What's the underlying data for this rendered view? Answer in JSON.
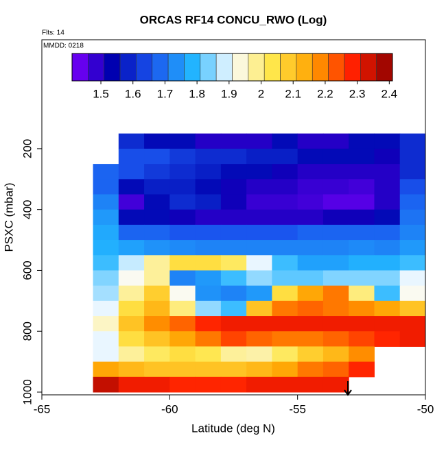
{
  "chart_data": {
    "type": "heatmap",
    "title": "ORCAS RF14 CONCU_RWO (Log)",
    "subtitle": "Flts: 14",
    "annotation": "MMDD: 0218",
    "x_label": "Latitude (deg N)",
    "y_label": "PSXC (mbar)",
    "x": [
      -62.5,
      -61.5,
      -60.5,
      -59.5,
      -58.5,
      -57.5,
      -56.5,
      -55.5,
      -54.5,
      -53.5,
      -52.5,
      -51.5,
      -50.5
    ],
    "y": [
      175,
      225,
      275,
      325,
      375,
      425,
      475,
      525,
      575,
      625,
      675,
      725,
      775,
      825,
      875,
      925,
      975
    ],
    "z": [
      [
        null,
        1.6,
        1.55,
        1.55,
        1.5,
        1.5,
        1.5,
        1.55,
        1.5,
        1.5,
        1.55,
        1.55,
        1.6
      ],
      [
        null,
        1.65,
        1.65,
        1.62,
        1.6,
        1.6,
        1.58,
        1.58,
        1.55,
        1.55,
        1.55,
        1.52,
        1.6
      ],
      [
        1.68,
        1.65,
        1.62,
        1.6,
        1.58,
        1.55,
        1.55,
        1.52,
        1.5,
        1.5,
        1.5,
        1.5,
        1.6
      ],
      [
        1.68,
        1.55,
        1.58,
        1.58,
        1.55,
        1.52,
        1.5,
        1.5,
        1.48,
        1.48,
        1.47,
        1.5,
        1.65
      ],
      [
        1.72,
        1.47,
        1.55,
        1.6,
        1.58,
        1.52,
        1.48,
        1.48,
        1.47,
        1.45,
        1.45,
        1.5,
        1.68
      ],
      [
        1.75,
        1.55,
        1.55,
        1.52,
        1.5,
        1.5,
        1.5,
        1.5,
        1.5,
        1.52,
        1.52,
        1.55,
        1.7
      ],
      [
        1.77,
        1.68,
        1.68,
        1.66,
        1.66,
        1.66,
        1.66,
        1.66,
        1.68,
        1.68,
        1.68,
        1.68,
        1.72
      ],
      [
        1.78,
        1.76,
        1.74,
        1.73,
        1.72,
        1.72,
        1.72,
        1.72,
        1.72,
        1.72,
        1.73,
        1.72,
        1.75
      ],
      [
        1.8,
        1.88,
        1.98,
        2.05,
        2.05,
        2.02,
        1.9,
        1.8,
        1.76,
        1.76,
        1.78,
        1.78,
        1.8
      ],
      [
        1.84,
        1.92,
        1.98,
        1.72,
        1.75,
        1.8,
        1.85,
        1.82,
        1.82,
        1.84,
        1.84,
        1.84,
        1.9
      ],
      [
        1.86,
        1.98,
        2.08,
        1.92,
        1.74,
        1.72,
        1.75,
        2.05,
        2.15,
        2.2,
        2.0,
        1.8,
        1.92
      ],
      [
        1.9,
        2.05,
        2.12,
        2.0,
        1.85,
        1.8,
        2.1,
        2.2,
        2.22,
        2.2,
        2.18,
        2.15,
        2.1
      ],
      [
        1.95,
        2.1,
        2.18,
        2.22,
        2.28,
        2.3,
        2.3,
        2.3,
        2.3,
        2.3,
        2.3,
        2.3,
        2.3
      ],
      [
        1.9,
        2.05,
        2.1,
        2.15,
        2.2,
        2.25,
        2.22,
        2.2,
        2.2,
        2.22,
        2.25,
        2.28,
        2.3
      ],
      [
        1.9,
        1.98,
        2.02,
        2.05,
        2.03,
        1.98,
        1.97,
        2.02,
        2.08,
        2.12,
        2.18,
        null,
        null
      ],
      [
        2.15,
        2.12,
        2.1,
        2.1,
        2.1,
        2.1,
        2.12,
        2.15,
        2.2,
        2.22,
        2.28,
        null,
        null
      ],
      [
        2.35,
        2.3,
        2.3,
        2.28,
        2.28,
        2.28,
        2.3,
        2.3,
        2.3,
        2.3,
        null,
        null,
        null
      ]
    ],
    "xlim": [
      -65,
      -50
    ],
    "xticks": [
      -65,
      -60,
      -55,
      -50
    ],
    "ylim": [
      1009,
      -158
    ],
    "yticks": [
      200,
      400,
      600,
      800,
      1000
    ],
    "zlim": [
      1.41,
      2.41
    ],
    "zticks": [
      1.5,
      1.6,
      1.7,
      1.8,
      1.9,
      2.0,
      2.1,
      2.2,
      2.3,
      2.4
    ],
    "colors": [
      "#7f00ff",
      "#0000b0",
      "#1a55ee",
      "#22b4ff",
      "#fafcff",
      "#ffe64a",
      "#ffa200",
      "#ff2000",
      "#8b0000"
    ]
  }
}
